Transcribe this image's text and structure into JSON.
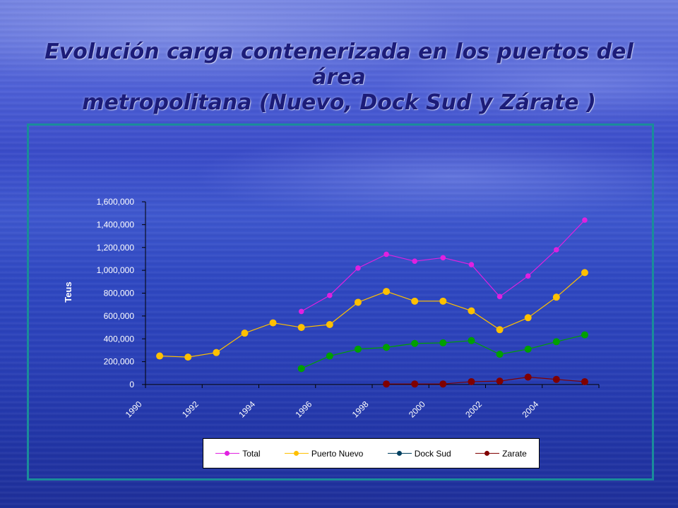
{
  "slide": {
    "title_line1": "Evolución carga contenerizada en los puertos del área",
    "title_line2": "metropolitana (Nuevo, Dock Sud y Zárate )"
  },
  "chart_data": {
    "type": "line",
    "title": "",
    "xlabel": "",
    "ylabel": "Teus",
    "ylim": [
      0,
      1600000
    ],
    "yticks": [
      0,
      200000,
      400000,
      600000,
      800000,
      1000000,
      1200000,
      1400000,
      1600000
    ],
    "ytick_labels": [
      "0",
      "200,000",
      "400,000",
      "600,000",
      "800,000",
      "1,000,000",
      "1,200,000",
      "1,400,000",
      "1,600,000"
    ],
    "x": [
      1990,
      1991,
      1992,
      1993,
      1994,
      1995,
      1996,
      1997,
      1998,
      1999,
      2000,
      2001,
      2002,
      2003,
      2004,
      2005
    ],
    "xticks": [
      1990,
      1992,
      1994,
      1996,
      1998,
      2000,
      2002,
      2004
    ],
    "grid": false,
    "legend_position": "bottom",
    "series": [
      {
        "name": "Total",
        "color": "#e020e0",
        "values": [
          null,
          null,
          null,
          null,
          null,
          640000,
          780000,
          1020000,
          1140000,
          1080000,
          1110000,
          1050000,
          770000,
          950000,
          1180000,
          1440000
        ]
      },
      {
        "name": "Puerto Nuevo",
        "color": "#ffc000",
        "values": [
          250000,
          240000,
          280000,
          450000,
          540000,
          500000,
          525000,
          720000,
          815000,
          730000,
          730000,
          645000,
          480000,
          585000,
          765000,
          980000
        ]
      },
      {
        "name": "Dock Sud",
        "color": "#00a000",
        "legend_color": "#004060",
        "values": [
          null,
          null,
          null,
          null,
          null,
          140000,
          250000,
          310000,
          325000,
          360000,
          365000,
          385000,
          265000,
          310000,
          375000,
          435000
        ]
      },
      {
        "name": "Zarate",
        "color": "#800000",
        "values": [
          null,
          null,
          null,
          null,
          null,
          null,
          null,
          null,
          5000,
          5000,
          5000,
          25000,
          30000,
          65000,
          45000,
          25000
        ]
      }
    ]
  }
}
